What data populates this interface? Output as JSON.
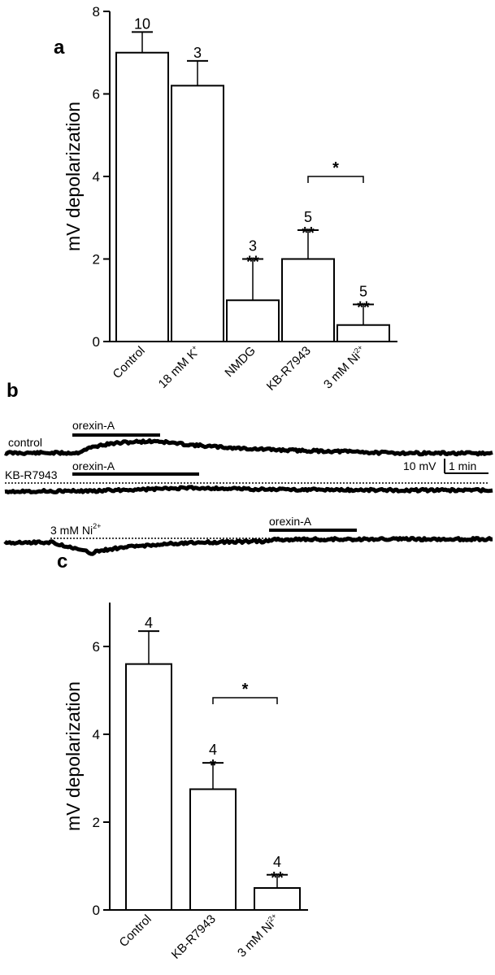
{
  "panels": {
    "a": "a",
    "b": "b",
    "c": "c"
  },
  "chart_data": [
    {
      "type": "bar",
      "panel": "a",
      "categories": [
        "Control",
        "18 mM K+",
        "NMDG",
        "KB-R7943",
        "3 mM Ni2+"
      ],
      "category_labels": [
        {
          "base": "Control",
          "sup": ""
        },
        {
          "base": "18 mM K",
          "sup": "+"
        },
        {
          "base": "NMDG",
          "sup": ""
        },
        {
          "base": "KB-R7943",
          "sup": ""
        },
        {
          "base": "3 mM Ni",
          "sup": "2+"
        }
      ],
      "values": [
        7.0,
        6.2,
        1.0,
        2.0,
        0.4
      ],
      "errors": [
        0.5,
        0.6,
        1.0,
        0.7,
        0.5
      ],
      "n_labels": [
        "10",
        "3",
        "3",
        "5",
        "5"
      ],
      "sig_labels": [
        "",
        "",
        "**",
        "**",
        "**"
      ],
      "brackets": [
        {
          "from": 3,
          "to": 4,
          "label": "*"
        }
      ],
      "ylabel": "mV depolarization",
      "ylim": [
        0,
        8
      ],
      "yticks": [
        0,
        2,
        4,
        6,
        8
      ]
    },
    {
      "type": "bar",
      "panel": "c",
      "categories": [
        "Control",
        "KB-R7943",
        "3 mM Ni2+"
      ],
      "category_labels": [
        {
          "base": "Control",
          "sup": ""
        },
        {
          "base": "KB-R7943",
          "sup": ""
        },
        {
          "base": "3 mM Ni",
          "sup": "2+"
        }
      ],
      "values": [
        5.6,
        2.75,
        0.5
      ],
      "errors": [
        0.75,
        0.6,
        0.3
      ],
      "n_labels": [
        "4",
        "4",
        "4"
      ],
      "sig_labels": [
        "",
        "*",
        "**"
      ],
      "brackets": [
        {
          "from": 1,
          "to": 2,
          "label": "*"
        }
      ],
      "ylabel": "mV depolarization",
      "ylim": [
        0,
        7
      ],
      "yticks": [
        0,
        2,
        4,
        6
      ]
    }
  ],
  "traces": {
    "rows": [
      {
        "label": "control",
        "bar_label": "orexin-A"
      },
      {
        "label": "KB-R7943",
        "bar_label": "orexin-A"
      },
      {
        "label": "3 mM Ni",
        "label_sup": "2+",
        "bar_label": "orexin-A"
      }
    ],
    "scale_bar": {
      "voltage": "10 mV",
      "time": "1 min"
    }
  }
}
